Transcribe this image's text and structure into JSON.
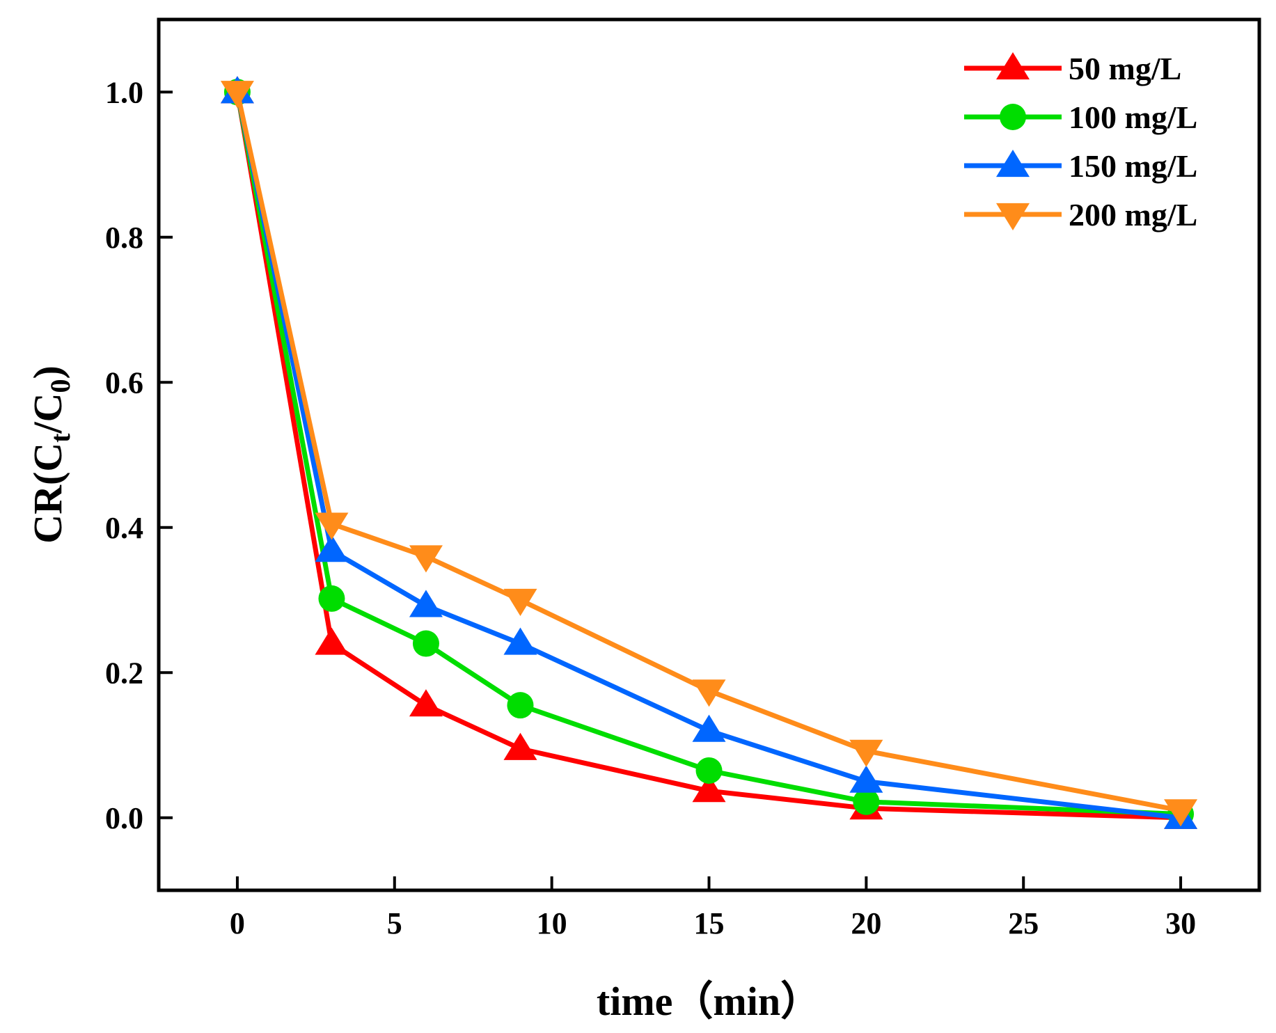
{
  "chart_data": {
    "type": "line",
    "title": "",
    "xlabel": "time（min）",
    "ylabel": {
      "prefix": "CR(C",
      "sub1": "t",
      "mid": "/C",
      "sub2": "0",
      "suffix": ")"
    },
    "xlim": [
      -2.5,
      32.5
    ],
    "ylim": [
      -0.1,
      1.1
    ],
    "xticks": [
      0,
      5,
      10,
      15,
      20,
      25,
      30
    ],
    "xtick_labels": [
      "0",
      "5",
      "10",
      "15",
      "20",
      "25",
      "30"
    ],
    "yticks": [
      0.0,
      0.2,
      0.4,
      0.6,
      0.8,
      1.0
    ],
    "ytick_labels": [
      "0.0",
      "0.2",
      "0.4",
      "0.6",
      "0.8",
      "1.0"
    ],
    "legend_position": "top-right",
    "x": [
      0,
      3,
      6,
      9,
      15,
      20,
      30
    ],
    "series": [
      {
        "name": "50 mg/L",
        "color": "#ff0000",
        "marker": "triangle-up",
        "values": [
          1.0,
          0.24,
          0.155,
          0.095,
          0.037,
          0.013,
          0.0
        ]
      },
      {
        "name": "100 mg/L",
        "color": "#00dd00",
        "marker": "circle",
        "values": [
          1.0,
          0.302,
          0.24,
          0.155,
          0.065,
          0.022,
          0.005
        ]
      },
      {
        "name": "150 mg/L",
        "color": "#0066ff",
        "marker": "triangle-up",
        "values": [
          1.0,
          0.368,
          0.292,
          0.24,
          0.12,
          0.05,
          0.0
        ]
      },
      {
        "name": "200 mg/L",
        "color": "#ff8c1a",
        "marker": "triangle-down",
        "values": [
          1.0,
          0.405,
          0.36,
          0.3,
          0.175,
          0.092,
          0.01
        ]
      }
    ]
  }
}
